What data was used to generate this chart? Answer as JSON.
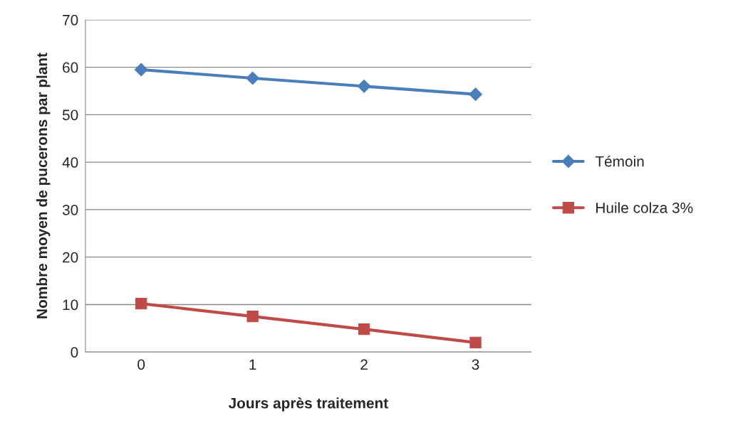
{
  "chart_data": {
    "type": "line",
    "xlabel": "Jours après traitement",
    "ylabel": "Nombre moyen de pucerons par plant",
    "categories": [
      "0",
      "1",
      "2",
      "3"
    ],
    "series": [
      {
        "name": "Témoin",
        "color": "#4a7ebb",
        "marker": "diamond",
        "values": [
          59.5,
          57.7,
          56.0,
          54.3
        ]
      },
      {
        "name": "Huile colza 3%",
        "color": "#be4b48",
        "marker": "square",
        "values": [
          10.2,
          7.5,
          4.8,
          2.0
        ]
      }
    ],
    "ylim": [
      0,
      70
    ],
    "yticks": [
      0,
      10,
      20,
      30,
      40,
      50,
      60,
      70
    ],
    "grid": "y",
    "legend": "right",
    "line_style": "solid"
  }
}
